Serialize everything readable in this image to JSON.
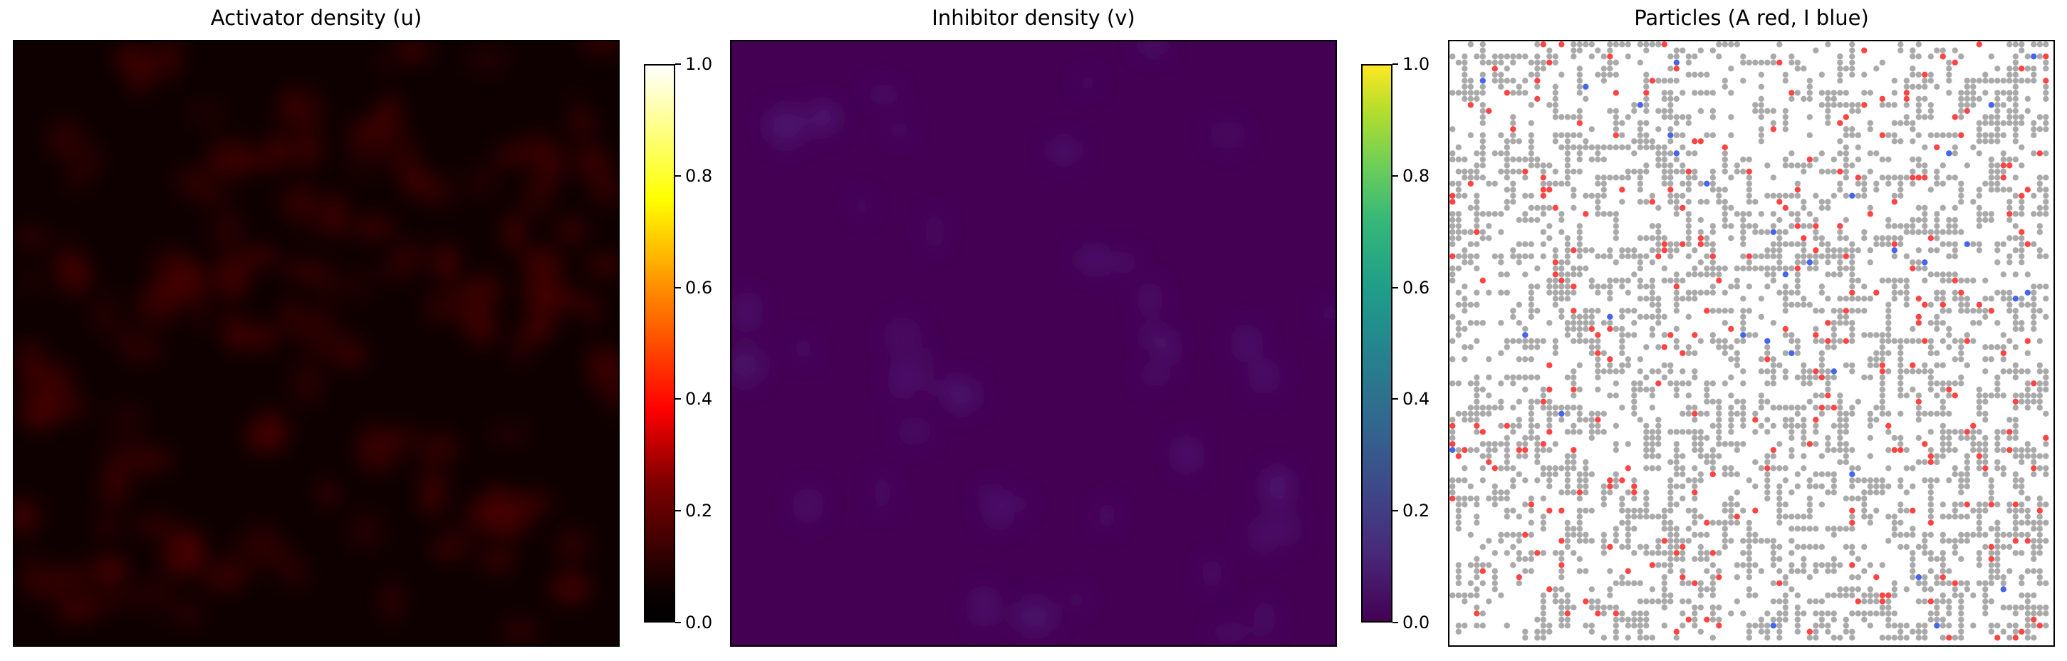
{
  "chart_data": [
    {
      "type": "heatmap",
      "title": "Activator density (u)",
      "colormap": "hot",
      "clim": [
        0.0,
        1.0
      ],
      "colorbar_ticks": [
        "0.0",
        "0.2",
        "0.4",
        "0.6",
        "0.8",
        "1.0"
      ],
      "colorbar_values": [
        0.0,
        0.2,
        0.4,
        0.6,
        0.8,
        1.0
      ],
      "xlabel": "",
      "ylabel": "",
      "axes_ticks": false,
      "value_range_observed": [
        0.0,
        0.12
      ],
      "background_color": "#0f0000",
      "blob_color": "#4a0000"
    },
    {
      "type": "heatmap",
      "title": "Inhibitor density (v)",
      "colormap": "viridis",
      "clim": [
        0.0,
        1.0
      ],
      "colorbar_ticks": [
        "0.0",
        "0.2",
        "0.4",
        "0.6",
        "0.8",
        "1.0"
      ],
      "colorbar_values": [
        0.0,
        0.2,
        0.4,
        0.6,
        0.8,
        1.0
      ],
      "xlabel": "",
      "ylabel": "",
      "axes_ticks": false,
      "value_range_observed": [
        0.0,
        0.05
      ],
      "background_color": "#440154",
      "blob_color": "#4f1a79"
    },
    {
      "type": "scatter",
      "title": "Particles (A red, I blue)",
      "xlabel": "",
      "ylabel": "",
      "axes_ticks": false,
      "series": [
        {
          "color": "#aaaaaa"
        },
        {
          "name": "A",
          "color": "#ff4444"
        },
        {
          "name": "I",
          "color": "#4466ee"
        }
      ]
    }
  ]
}
